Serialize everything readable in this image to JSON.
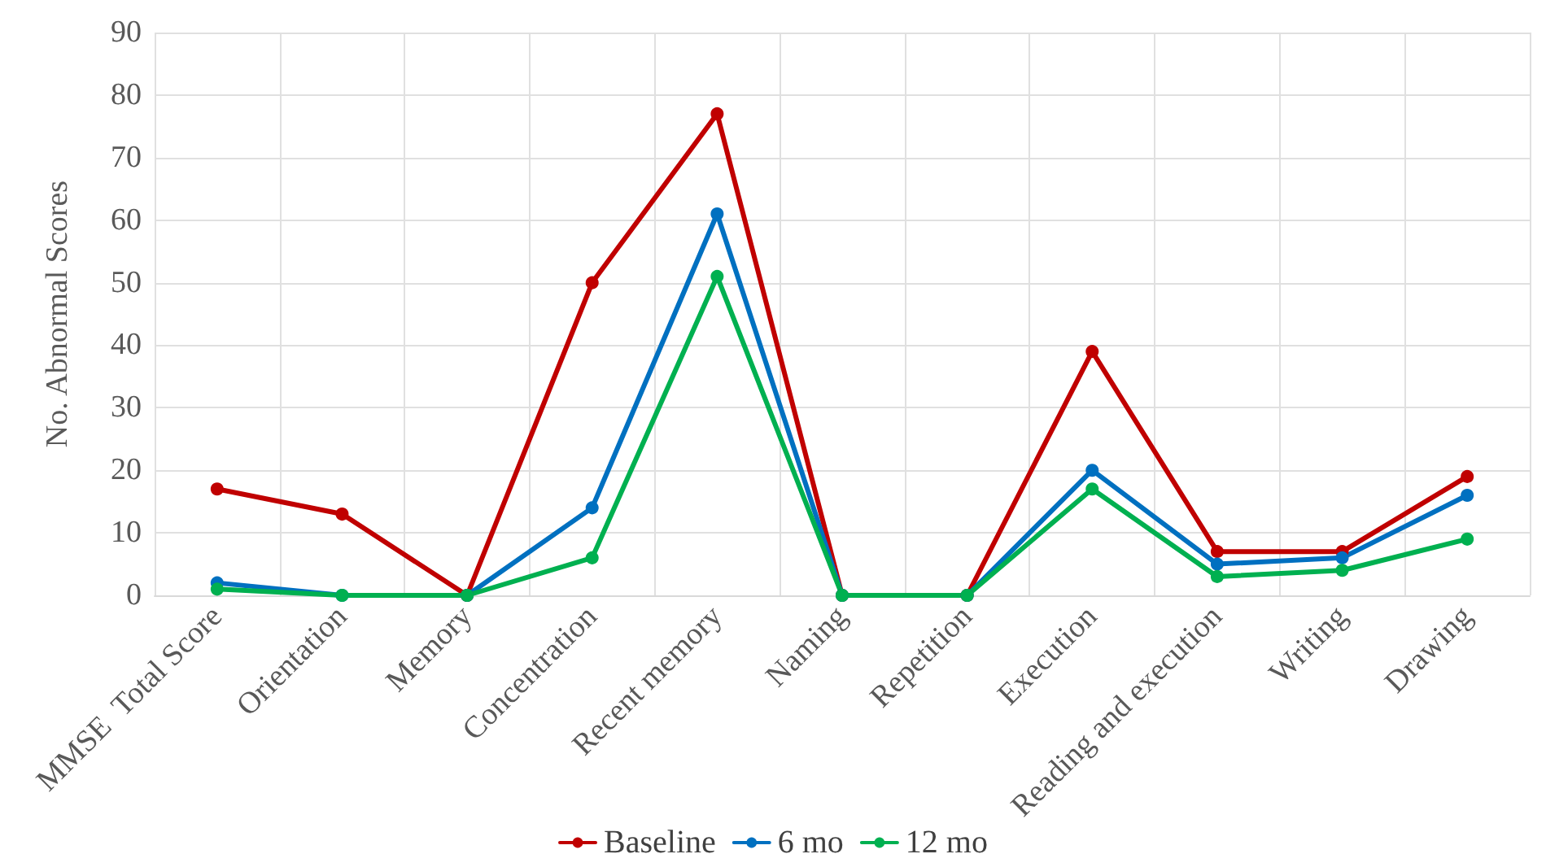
{
  "chart_data": {
    "type": "line",
    "ylabel": "No. Abnormal Scores",
    "categories": [
      "MMSE  Total Score",
      "Orientation",
      "Memory",
      "Concentration",
      "Recent memory",
      "Naming",
      "Repetition",
      "Execution",
      "Reading and execution",
      "Writing",
      "Drawing"
    ],
    "series": [
      {
        "name": "Baseline",
        "color": "#c00000",
        "values": [
          17,
          13,
          0,
          50,
          77,
          0,
          0,
          39,
          7,
          7,
          19
        ]
      },
      {
        "name": "6 mo",
        "color": "#0070c0",
        "values": [
          2,
          0,
          0,
          14,
          61,
          0,
          0,
          20,
          5,
          6,
          16
        ]
      },
      {
        "name": "12 mo",
        "color": "#00b050",
        "values": [
          1,
          0,
          0,
          6,
          51,
          0,
          0,
          17,
          3,
          4,
          9
        ]
      }
    ],
    "ylim": [
      0,
      90
    ],
    "yticks": [
      0,
      10,
      20,
      30,
      40,
      50,
      60,
      70,
      80,
      90
    ],
    "grid": true,
    "legend": "bottom",
    "marker": "circle",
    "line_style": "solid"
  }
}
